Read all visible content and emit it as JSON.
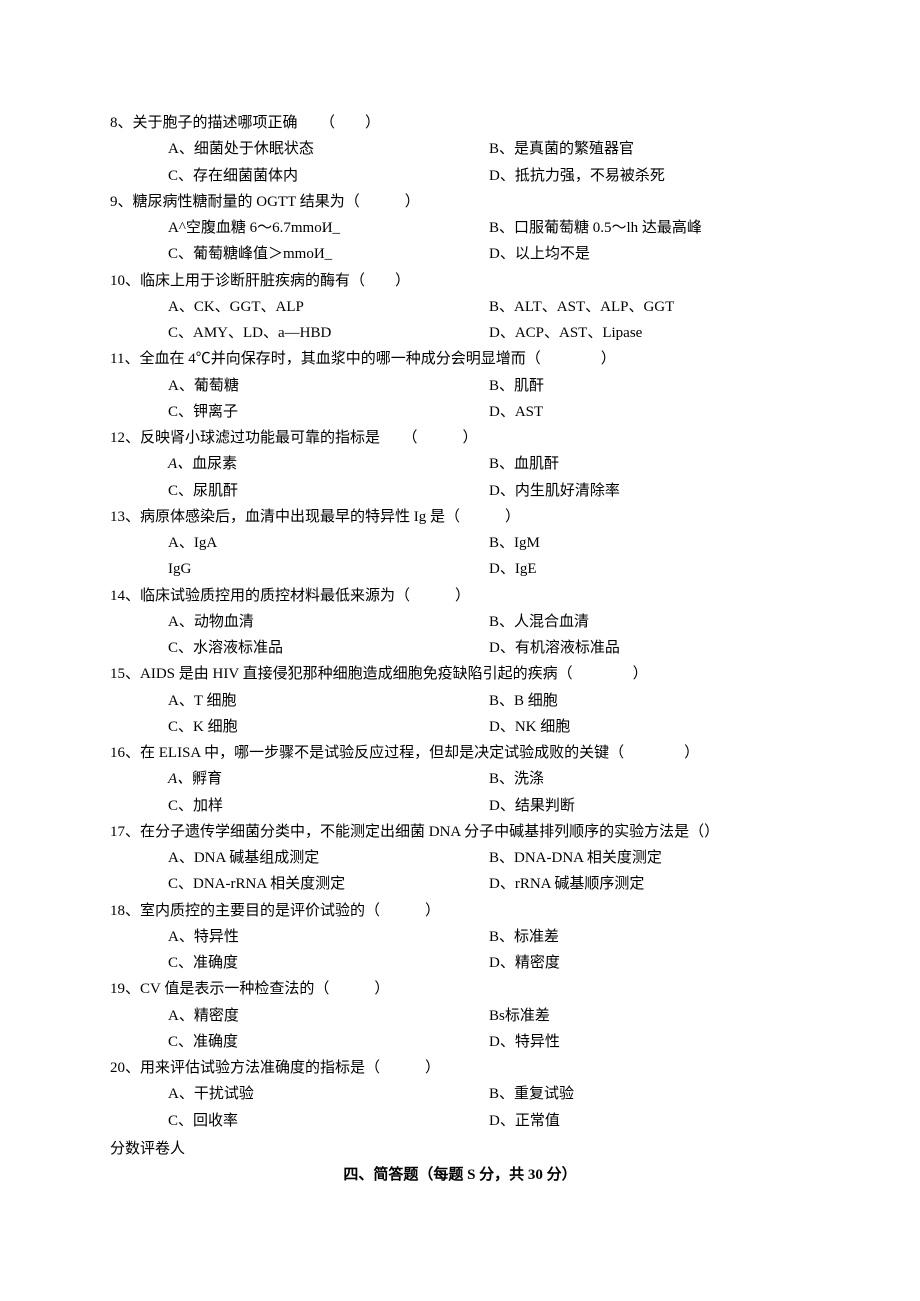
{
  "questions": [
    {
      "num": "8",
      "stem": "关于胞子的描述哪项正确　　（　　）",
      "opts": [
        {
          "l": "A、",
          "t": "细菌处于休眠状态"
        },
        {
          "l": "B、",
          "t": "是真菌的繁殖器官"
        },
        {
          "l": "C、",
          "t": "存在细菌菌体内"
        },
        {
          "l": "D、",
          "t": "抵抗力强，不易被杀死"
        }
      ]
    },
    {
      "num": "9",
      "stem": "糖尿病性糖耐量的 OGTT 结果为（　　　）",
      "opts": [
        {
          "l": "A^",
          "t": "空腹血糖 6～6.7mmoИ_"
        },
        {
          "l": "B、",
          "t": "口服葡萄糖 0.5～lh 达最高峰"
        },
        {
          "l": "C、",
          "t": "葡萄糖峰值＞mmoИ_"
        },
        {
          "l": "D、",
          "t": "以上均不是"
        }
      ]
    },
    {
      "num": "10",
      "stem": "临床上用于诊断肝脏疾病的酶有（　　）",
      "opts": [
        {
          "l": "A、",
          "t": "CK、GGT、ALP"
        },
        {
          "l": "B、",
          "t": "ALT、AST、ALP、GGT"
        },
        {
          "l": "C、",
          "t": "AMY、LD、a—HBD"
        },
        {
          "l": "D、",
          "t": "ACP、AST、Lipase"
        }
      ]
    },
    {
      "num": "11",
      "stem": "全血在 4℃并向保存时，其血浆中的哪一种成分会明显增而（　　　　）",
      "opts": [
        {
          "l": "A、",
          "t": "葡萄糖"
        },
        {
          "l": "B、",
          "t": "肌酐"
        },
        {
          "l": "C、",
          "t": "钾离子"
        },
        {
          "l": "D、",
          "t": "AST"
        }
      ]
    },
    {
      "num": "12",
      "stem": "反映肾小球滤过功能最可靠的指标是　　（　　　）",
      "opts": [
        {
          "l": "A、",
          "t": "血尿素",
          "italic": true
        },
        {
          "l": "B、",
          "t": "血肌酐"
        },
        {
          "l": "C、",
          "t": "尿肌酐"
        },
        {
          "l": "D、",
          "t": "内生肌好清除率"
        }
      ]
    },
    {
      "num": "13",
      "stem": "病原体感染后，血清中出现最早的特异性 Ig 是（　　　）",
      "opts": [
        {
          "l": "A、",
          "t": "IgA"
        },
        {
          "l": "B、",
          "t": "IgM"
        },
        {
          "l": "",
          "t": "IgG"
        },
        {
          "l": "D、",
          "t": "IgE"
        }
      ]
    },
    {
      "num": "14",
      "stem": "临床试验质控用的质控材料最低来源为（　　　）",
      "opts": [
        {
          "l": "A、",
          "t": "动物血清"
        },
        {
          "l": "B、",
          "t": "人混合血清"
        },
        {
          "l": "C、",
          "t": "水溶液标准品"
        },
        {
          "l": "D、",
          "t": "有机溶液标准品"
        }
      ]
    },
    {
      "num": "15",
      "stem": "AIDS 是由 HIV 直接侵犯那种细胞造成细胞免疫缺陷引起的疾病（　　　　）",
      "opts": [
        {
          "l": "A、",
          "t": "T 细胞"
        },
        {
          "l": "B、",
          "t": "B 细胞"
        },
        {
          "l": "C、",
          "t": "K 细胞"
        },
        {
          "l": "D、",
          "t": "NK 细胞"
        }
      ]
    },
    {
      "num": "16",
      "stem": "在 ELISA 中，哪一步骤不是试验反应过程，但却是决定试验成败的关键（　　　　）",
      "opts": [
        {
          "l": "A、",
          "t": "孵育",
          "italic": true
        },
        {
          "l": "B、",
          "t": "洗涤"
        },
        {
          "l": "C、",
          "t": "加样"
        },
        {
          "l": "D、",
          "t": "结果判断"
        }
      ]
    },
    {
      "num": "17",
      "stem": "在分子遗传学细菌分类中，不能测定出细菌 DNA 分子中碱基排列顺序的实验方法是（）",
      "opts": [
        {
          "l": "A、",
          "t": "DNA 碱基组成测定"
        },
        {
          "l": "B、",
          "t": "DNA-DNA 相关度测定"
        },
        {
          "l": "C、",
          "t": "DNA-rRNA 相关度测定"
        },
        {
          "l": "D、",
          "t": "rRNA 碱基顺序测定"
        }
      ]
    },
    {
      "num": "18",
      "stem": "室内质控的主要目的是评价试验的（　　　）",
      "opts": [
        {
          "l": "A、",
          "t": "特异性"
        },
        {
          "l": "B、",
          "t": "标准差"
        },
        {
          "l": "C、",
          "t": "准确度"
        },
        {
          "l": "D、",
          "t": "精密度"
        }
      ]
    },
    {
      "num": "19",
      "stem": "CV 值是表示一种检查法的（　　　）",
      "opts": [
        {
          "l": "A、",
          "t": "精密度"
        },
        {
          "l": "Bs",
          "t": "标准差"
        },
        {
          "l": "C、",
          "t": "准确度"
        },
        {
          "l": "D、",
          "t": "特异性"
        }
      ]
    },
    {
      "num": "20",
      "stem": "用来评估试验方法准确度的指标是（　　　）",
      "opts": [
        {
          "l": "A、",
          "t": "干扰试验"
        },
        {
          "l": "B、",
          "t": "重复试验"
        },
        {
          "l": "C、",
          "t": "回收率"
        },
        {
          "l": "D、",
          "t": "正常值"
        }
      ]
    }
  ],
  "footer": {
    "score_label": "分数评卷人",
    "section_title": "四、简答题（每题 S 分，共 30 分）"
  }
}
